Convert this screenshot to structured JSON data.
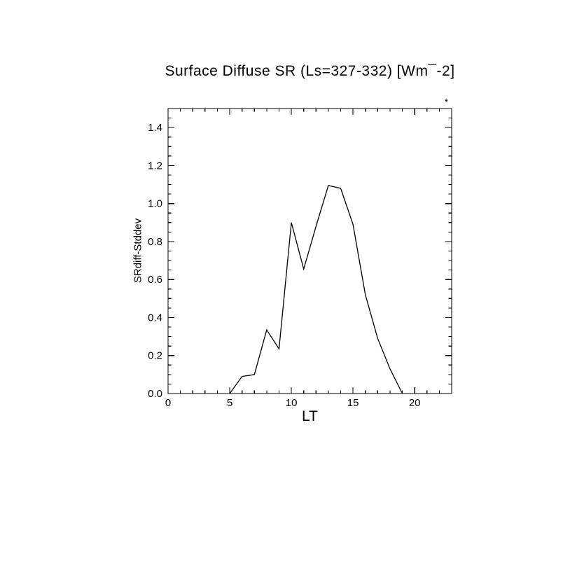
{
  "page": {
    "background": "#ffffff",
    "foreground": "#000000"
  },
  "chart_data": {
    "type": "line",
    "title": "Surface Diffuse SR (Ls=327-332) [Wm¯-2]",
    "xlabel": "LT",
    "ylabel": "SRdiff-Stddev",
    "xlim": [
      0,
      23
    ],
    "ylim": [
      0,
      1.5
    ],
    "x_major_ticks": [
      0,
      5,
      10,
      15,
      20
    ],
    "x_tick_labels": [
      "0",
      "5",
      "10",
      "15",
      "20"
    ],
    "x_minor_step": 1,
    "y_major_ticks": [
      0.0,
      0.2,
      0.4,
      0.6,
      0.8,
      1.0,
      1.2,
      1.4
    ],
    "y_tick_labels": [
      "0.0",
      "0.2",
      "0.4",
      "0.6",
      "0.8",
      "1.0",
      "1.2",
      "1.4"
    ],
    "y_minor_step": 0.05,
    "grid": false,
    "legend": "none",
    "line_color": "#000000",
    "series": [
      {
        "name": "SRdiff-Stddev",
        "x": [
          5,
          6,
          7,
          8,
          9,
          10,
          11,
          12,
          13,
          14,
          15,
          16,
          17,
          18,
          19
        ],
        "y": [
          0.0,
          0.09,
          0.1,
          0.335,
          0.235,
          0.9,
          0.655,
          0.88,
          1.095,
          1.08,
          0.89,
          0.52,
          0.29,
          0.13,
          0.0
        ]
      }
    ]
  }
}
